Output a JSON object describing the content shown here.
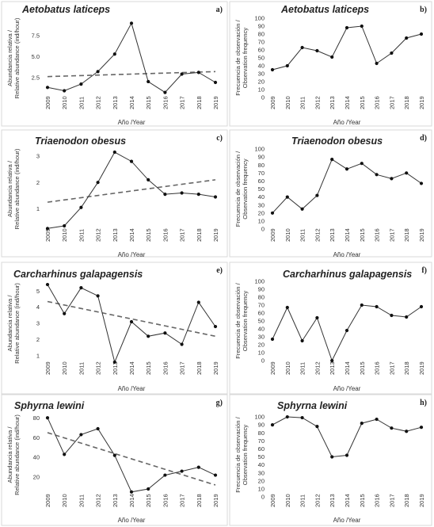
{
  "chart_data": [
    {
      "panel": "a)",
      "type": "line",
      "title": "Aetobatus laticeps",
      "x": [
        2009,
        2010,
        2011,
        2012,
        2013,
        2014,
        2015,
        2016,
        2017,
        2018,
        2019
      ],
      "values": [
        1.3,
        0.9,
        1.7,
        3.2,
        5.3,
        9.0,
        2.0,
        0.7,
        2.9,
        3.1,
        1.9
      ],
      "trend": [
        2.6,
        3.2
      ],
      "ylim": [
        0,
        9.6
      ],
      "yticks": [
        "2.5",
        "5.0",
        "7.5"
      ],
      "ytick_values": [
        2.5,
        5.0,
        7.5
      ],
      "ylabel": [
        "Abundancia relativa /",
        "Relative abundance (ind/hour)"
      ],
      "xlabel": "Año /Year"
    },
    {
      "panel": "b)",
      "type": "line",
      "title": "Aetobatus laticeps",
      "x": [
        2009,
        2010,
        2011,
        2012,
        2013,
        2014,
        2015,
        2016,
        2017,
        2018,
        2019
      ],
      "values": [
        35,
        40,
        63,
        59,
        51,
        88,
        90,
        43,
        56,
        75,
        80
      ],
      "ylim": [
        0,
        100
      ],
      "yticks": [
        "0",
        "10",
        "20",
        "30",
        "40",
        "50",
        "60",
        "70",
        "80",
        "90",
        "100"
      ],
      "ytick_values": [
        0,
        10,
        20,
        30,
        40,
        50,
        60,
        70,
        80,
        90,
        100
      ],
      "ylabel": [
        "Frecuencia de observación /",
        "Observation frequency"
      ],
      "xlabel": "Año /Year"
    },
    {
      "panel": "c)",
      "type": "line",
      "title": "Triaenodon obesus",
      "x": [
        2009,
        2010,
        2011,
        2012,
        2013,
        2014,
        2015,
        2016,
        2017,
        2018,
        2019
      ],
      "values": [
        0.25,
        0.35,
        1.05,
        2.0,
        3.15,
        2.8,
        2.1,
        1.55,
        1.6,
        1.55,
        1.45
      ],
      "trend": [
        1.25,
        2.1
      ],
      "ylim": [
        0.2,
        3.3
      ],
      "yticks": [
        "1",
        "2",
        "3"
      ],
      "ytick_values": [
        1,
        2,
        3
      ],
      "ylabel": [
        "Abundancia relativa /",
        "Relative abundance (ind/hour)"
      ],
      "xlabel": "Año /Year"
    },
    {
      "panel": "d)",
      "type": "line",
      "title": "Triaenodon obesus",
      "x": [
        2009,
        2010,
        2011,
        2012,
        2013,
        2014,
        2015,
        2016,
        2017,
        2018,
        2019
      ],
      "values": [
        20,
        40,
        25,
        42,
        87,
        75,
        82,
        68,
        63,
        70,
        57
      ],
      "ylim": [
        0,
        100
      ],
      "yticks": [
        "0",
        "10",
        "20",
        "30",
        "40",
        "50",
        "60",
        "70",
        "80",
        "90",
        "100"
      ],
      "ytick_values": [
        0,
        10,
        20,
        30,
        40,
        50,
        60,
        70,
        80,
        90,
        100
      ],
      "ylabel": [
        "Frecuencia de observación /",
        "Observation frequency"
      ],
      "xlabel": "Año /Year"
    },
    {
      "panel": "e)",
      "type": "line",
      "title": "Carcharhinus galapagensis",
      "x": [
        2009,
        2010,
        2011,
        2012,
        2013,
        2014,
        2015,
        2016,
        2017,
        2018,
        2019
      ],
      "values": [
        5.4,
        3.6,
        5.2,
        4.7,
        0.6,
        3.1,
        2.2,
        2.4,
        1.7,
        4.3,
        2.8
      ],
      "trend": [
        4.35,
        2.2
      ],
      "ylim": [
        0.4,
        5.6
      ],
      "yticks": [
        "1",
        "2",
        "3",
        "4",
        "5"
      ],
      "ytick_values": [
        1,
        2,
        3,
        4,
        5
      ],
      "ylabel": [
        "Abundancia relativa /",
        "Relative abundance (ind/hour)"
      ],
      "xlabel": "Año /Year"
    },
    {
      "panel": "f)",
      "type": "line",
      "title": "Carcharhinus galapagensis",
      "x": [
        2009,
        2010,
        2011,
        2012,
        2013,
        2014,
        2015,
        2016,
        2017,
        2018,
        2019
      ],
      "values": [
        27,
        67,
        25,
        54,
        0,
        38,
        70,
        68,
        57,
        55,
        68
      ],
      "ylim": [
        0,
        100
      ],
      "yticks": [
        "0",
        "10",
        "20",
        "30",
        "40",
        "50",
        "60",
        "70",
        "80",
        "90",
        "100"
      ],
      "ytick_values": [
        0,
        10,
        20,
        30,
        40,
        50,
        60,
        70,
        80,
        90,
        100
      ],
      "ylabel": [
        "Frecuencia de observación /",
        "Observation frequency"
      ],
      "xlabel": "Año /Year"
    },
    {
      "panel": "g)",
      "type": "line",
      "title": "Sphyrna lewini",
      "x": [
        2009,
        2010,
        2011,
        2012,
        2013,
        2014,
        2015,
        2016,
        2017,
        2018,
        2019
      ],
      "values": [
        80,
        43,
        63,
        69,
        42,
        5,
        8,
        22,
        26,
        30,
        22
      ],
      "trend": [
        65,
        12
      ],
      "ylim": [
        0,
        85
      ],
      "yticks": [
        "20",
        "40",
        "60",
        "80"
      ],
      "ytick_values": [
        20,
        40,
        60,
        80
      ],
      "ylabel": [
        "Abundancia relativa /",
        "Relative abundance (ind/hour)"
      ],
      "xlabel": "Año /Year"
    },
    {
      "panel": "h)",
      "type": "line",
      "title": "Sphyrna lewini",
      "x": [
        2009,
        2010,
        2011,
        2012,
        2013,
        2014,
        2015,
        2016,
        2017,
        2018,
        2019
      ],
      "values": [
        90,
        100,
        99,
        88,
        50,
        52,
        92,
        97,
        86,
        82,
        87
      ],
      "ylim": [
        0,
        105
      ],
      "yticks": [
        "0",
        "10",
        "20",
        "30",
        "40",
        "50",
        "60",
        "70",
        "80",
        "90",
        "100"
      ],
      "ytick_values": [
        0,
        10,
        20,
        30,
        40,
        50,
        60,
        70,
        80,
        90,
        100
      ],
      "ylabel": [
        "Frecuencia de observación /",
        "Observation frequency"
      ],
      "xlabel": "Año /Year"
    }
  ]
}
